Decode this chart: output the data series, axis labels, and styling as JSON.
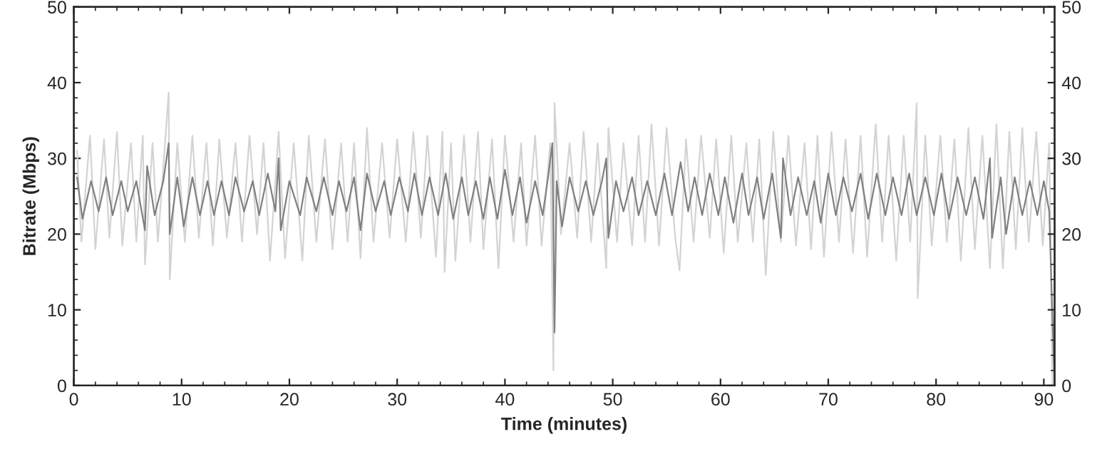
{
  "chart_data": {
    "type": "line",
    "xlabel": "Time (minutes)",
    "ylabel": "Bitrate (Mbps)",
    "xlim": [
      0,
      91
    ],
    "xticks": [
      0,
      10,
      20,
      30,
      40,
      50,
      60,
      70,
      80,
      90
    ],
    "ylim": [
      0,
      50
    ],
    "yticks": [
      0,
      10,
      20,
      30,
      40,
      50
    ],
    "y2lim": [
      0,
      50
    ],
    "y2ticks": [
      0,
      10,
      20,
      30,
      40,
      50
    ],
    "grid": false,
    "legend": false,
    "marker": "none",
    "line_style": "solid",
    "series": [
      {
        "color": "#d3d3d3",
        "x": [
          0.3,
          0.7,
          1.5,
          2,
          2.8,
          3.3,
          4,
          4.5,
          5.3,
          5.8,
          6.4,
          6.6,
          7.3,
          7.8,
          8.8,
          8.9,
          9.6,
          10.3,
          11,
          11.6,
          12.3,
          12.9,
          13.5,
          14.2,
          15,
          15.6,
          16.3,
          17,
          17.6,
          18.2,
          19,
          19.6,
          20.4,
          21.2,
          21.8,
          22.5,
          23.3,
          24,
          24.8,
          25.4,
          26,
          26.6,
          27.2,
          27.8,
          28.6,
          29.3,
          30,
          30.8,
          31.5,
          32.2,
          32.8,
          33.6,
          34.2,
          34.4,
          35,
          35.4,
          36.2,
          36.8,
          37.5,
          38,
          38.8,
          39.4,
          40,
          40.8,
          41.5,
          42,
          42.8,
          43.4,
          44.2,
          44.5,
          44.6,
          45.2,
          46,
          46.7,
          47.3,
          48,
          48.6,
          49.4,
          49.6,
          50.4,
          51,
          51.8,
          52.4,
          53,
          53.6,
          54.3,
          55,
          55.8,
          56.2,
          56.8,
          57.5,
          58.2,
          59,
          59.6,
          60.3,
          61,
          61.6,
          62.4,
          63,
          63.6,
          64.2,
          64.9,
          65.6,
          66.3,
          67,
          67.8,
          68.4,
          69,
          69.6,
          70.3,
          71,
          71.6,
          72.3,
          73,
          73.6,
          74.4,
          75,
          75.6,
          76.3,
          77,
          77.6,
          78.2,
          78.3,
          79,
          79.6,
          80.4,
          81,
          81.7,
          82.3,
          83,
          83.6,
          84.3,
          85,
          85.6,
          86.2,
          86.8,
          87.4,
          88,
          88.6,
          89.3,
          89.9,
          90.5,
          90.8,
          91
        ],
        "values": [
          31,
          19,
          33,
          18,
          32.5,
          19.5,
          33.5,
          18.5,
          32,
          19,
          33,
          16,
          32,
          19,
          38.7,
          14,
          32,
          19,
          33,
          19.5,
          32,
          18.5,
          32.5,
          19.5,
          32,
          19,
          33,
          20,
          32,
          16.5,
          33.5,
          16.8,
          32,
          16.5,
          33,
          19,
          32.5,
          18,
          32,
          19,
          32,
          16.8,
          34,
          19,
          32,
          19.5,
          32.5,
          19,
          33.5,
          19.5,
          33,
          17,
          33.5,
          15,
          32,
          16.5,
          33,
          19,
          33.5,
          18,
          32.5,
          15.5,
          33,
          19,
          32,
          18.5,
          33,
          18.5,
          32,
          2,
          37.3,
          20,
          32,
          19.5,
          33.5,
          19,
          32,
          15.5,
          34,
          19,
          32,
          18.5,
          33,
          19,
          34.5,
          18.5,
          34,
          19.5,
          15.2,
          32.5,
          19,
          33,
          19.5,
          32.5,
          17.5,
          33,
          19,
          32,
          19,
          32.5,
          14.6,
          33.5,
          19,
          33,
          18.5,
          32,
          18,
          33,
          17,
          33.5,
          19,
          32.5,
          17.5,
          33,
          17,
          34.5,
          19,
          33,
          16.5,
          33,
          19,
          37.3,
          11.5,
          33,
          18.5,
          33,
          19,
          32.5,
          16.5,
          34,
          18,
          33,
          15.5,
          34.5,
          15.5,
          33.5,
          18,
          34,
          19,
          33.5,
          18.5,
          32,
          0,
          0
        ]
      },
      {
        "color": "#808080",
        "x": [
          0.3,
          0.8,
          1.6,
          2.3,
          3,
          3.6,
          4.4,
          5,
          5.8,
          6.6,
          6.8,
          7.5,
          8.3,
          8.8,
          8.9,
          9.6,
          10.2,
          11,
          11.7,
          12.4,
          13,
          13.7,
          14.4,
          15,
          15.8,
          16.6,
          17.2,
          18,
          18.7,
          19,
          19.2,
          20,
          21,
          21.6,
          22.5,
          23.2,
          24,
          24.6,
          25.3,
          26,
          26.6,
          27.2,
          28,
          28.8,
          29.4,
          30.2,
          31,
          31.6,
          32.3,
          33,
          33.8,
          34.5,
          35.2,
          36,
          36.6,
          37.3,
          38,
          38.6,
          39.3,
          40,
          40.7,
          41.4,
          42,
          42.8,
          43.5,
          44,
          44.4,
          44.6,
          44.8,
          45.3,
          46,
          46.8,
          47.5,
          48.2,
          49,
          49.4,
          49.6,
          50.3,
          51,
          51.8,
          52.4,
          53.2,
          54,
          54.8,
          55.5,
          56.3,
          57,
          57.6,
          58.3,
          59,
          59.8,
          60.4,
          61.2,
          62,
          62.6,
          63.4,
          64,
          64.8,
          65.6,
          65.8,
          66.5,
          67.2,
          68,
          68.7,
          69.3,
          70,
          70.7,
          71.4,
          72.2,
          73,
          73.7,
          74.5,
          75.3,
          76,
          76.8,
          77.5,
          78.2,
          79,
          79.8,
          80.5,
          81.2,
          82,
          82.8,
          83.6,
          84.4,
          85,
          85.2,
          86,
          86.5,
          87.3,
          88,
          88.7,
          89.4,
          90,
          90.5,
          90.8,
          91
        ],
        "values": [
          27.5,
          22,
          27,
          23,
          27.5,
          22.5,
          27,
          23,
          27,
          20.5,
          29,
          22.5,
          27,
          32,
          20,
          27.5,
          21,
          27.5,
          22.5,
          27,
          22.5,
          27,
          22.5,
          27.5,
          23,
          27,
          22.5,
          28,
          23,
          30,
          20.5,
          27,
          22.5,
          27.5,
          23,
          27.5,
          22.5,
          27,
          23,
          27.5,
          20.5,
          28,
          23,
          27,
          22.5,
          27.5,
          23,
          28,
          22.5,
          27.5,
          22.5,
          28,
          22,
          27.5,
          22.5,
          27,
          22,
          27.5,
          22,
          28.5,
          22.5,
          27.5,
          21.5,
          27,
          22.5,
          27.5,
          32,
          7,
          27,
          21,
          27.5,
          23,
          27,
          22.5,
          27,
          30,
          19.5,
          27,
          23,
          27.5,
          22.5,
          27,
          22.5,
          28,
          22.5,
          29.5,
          23,
          27.5,
          22.5,
          28,
          22.5,
          27.5,
          21.5,
          28,
          22.5,
          27.5,
          22,
          28,
          19.5,
          30,
          22.5,
          27.5,
          22.5,
          27,
          21.5,
          28,
          22.5,
          27.5,
          23,
          28,
          22,
          28,
          22.5,
          27.5,
          22.5,
          28,
          22.5,
          27.5,
          22.5,
          28,
          22,
          27.5,
          22.5,
          27.5,
          22,
          30,
          19.5,
          27.5,
          20,
          27.5,
          22.5,
          27,
          22.5,
          27,
          23,
          9,
          0
        ]
      }
    ]
  }
}
